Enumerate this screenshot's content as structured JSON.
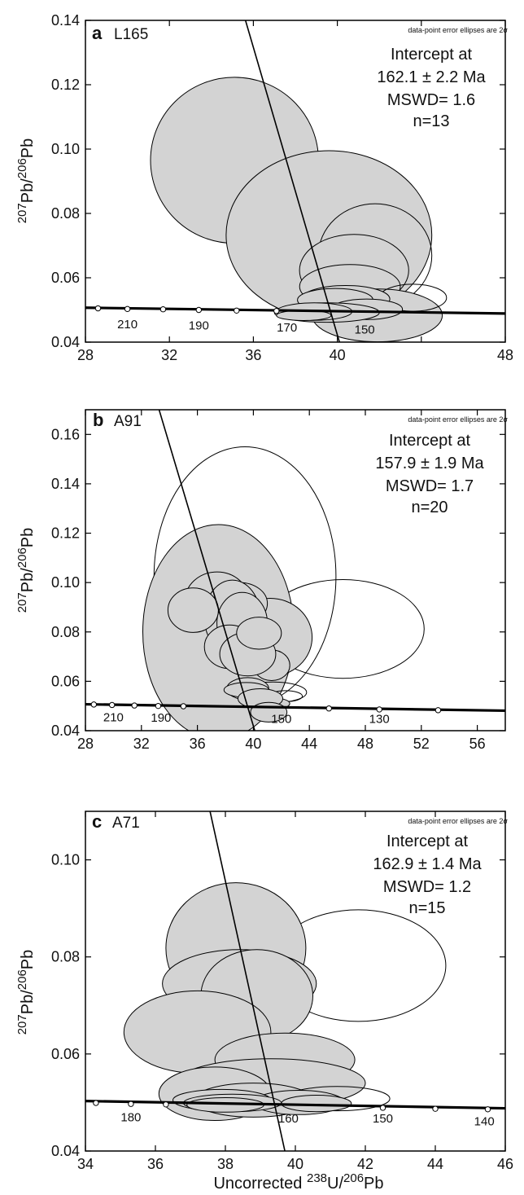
{
  "x_axis_label": {
    "prefix": "Uncorrected ",
    "sup1": "238",
    "mid": "U/",
    "sup2": "206",
    "suffix": "Pb"
  },
  "y_axis_label": {
    "sup1": "207",
    "mid": "Pb/",
    "sup2": "206",
    "suffix": "Pb"
  },
  "chart_data": [
    {
      "type": "scatter",
      "panel": "a",
      "sample": "L165",
      "note": "data-point error ellipses are 2σ",
      "intercept_lines": [
        "Intercept at",
        "162.1 ± 2.2 Ma",
        "MSWD= 1.6",
        "n=13"
      ],
      "xlim": [
        28,
        48
      ],
      "ylim": [
        0.04,
        0.14
      ],
      "x_ticks": [
        28,
        32,
        36,
        40,
        44,
        48
      ],
      "x_tick_labels": [
        "28",
        "32",
        "36",
        "40",
        "",
        "48"
      ],
      "y_ticks": [
        0.04,
        0.06,
        0.08,
        0.1,
        0.12,
        0.14
      ],
      "y_tick_labels": [
        "0.04",
        "0.06",
        "0.08",
        "0.10",
        "0.12",
        "0.14"
      ],
      "concordia": {
        "line": [
          [
            28,
            0.0507
          ],
          [
            48,
            0.0489
          ]
        ],
        "age_marks": [
          [
            28.6,
            0.0505
          ],
          [
            30.0,
            0.0503
          ],
          [
            31.7,
            0.0502
          ],
          [
            33.4,
            0.05
          ],
          [
            35.2,
            0.0498
          ],
          [
            37.1,
            0.0497
          ]
        ],
        "age_labels": [
          {
            "text": "210",
            "x": 30.0,
            "y": 0.0443
          },
          {
            "text": "190",
            "x": 33.4,
            "y": 0.0439
          },
          {
            "text": "170",
            "x": 37.6,
            "y": 0.0433
          },
          {
            "text": "150",
            "x": 41.3,
            "y": 0.0427
          }
        ]
      },
      "discordia": [
        [
          35.4,
          0.145
        ],
        [
          40.1,
          0.04
        ]
      ],
      "ellipses": [
        {
          "cx": 35.1,
          "cy": 0.0965,
          "rx": 4.0,
          "ry": 0.0258,
          "filled": true
        },
        {
          "cx": 39.6,
          "cy": 0.0733,
          "rx": 4.9,
          "ry": 0.0262,
          "filled": true
        },
        {
          "cx": 41.8,
          "cy": 0.0669,
          "rx": 2.7,
          "ry": 0.0161,
          "filled": false
        },
        {
          "cx": 40.8,
          "cy": 0.0623,
          "rx": 2.6,
          "ry": 0.0112,
          "filled": true
        },
        {
          "cx": 40.6,
          "cy": 0.0573,
          "rx": 2.4,
          "ry": 0.0068,
          "filled": true
        },
        {
          "cx": 41.9,
          "cy": 0.0483,
          "rx": 3.1,
          "ry": 0.0082,
          "filled": true
        },
        {
          "cx": 43.6,
          "cy": 0.0538,
          "rx": 1.6,
          "ry": 0.0042,
          "filled": false
        },
        {
          "cx": 40.4,
          "cy": 0.0534,
          "rx": 2.1,
          "ry": 0.0042,
          "filled": true
        },
        {
          "cx": 39.9,
          "cy": 0.0531,
          "rx": 1.8,
          "ry": 0.0036,
          "filled": true
        },
        {
          "cx": 41.4,
          "cy": 0.0502,
          "rx": 1.7,
          "ry": 0.0032,
          "filled": true
        },
        {
          "cx": 39.5,
          "cy": 0.0492,
          "rx": 2.5,
          "ry": 0.003,
          "filled": true
        },
        {
          "cx": 38.9,
          "cy": 0.0495,
          "rx": 1.8,
          "ry": 0.0027,
          "filled": true
        },
        {
          "cx": 38.4,
          "cy": 0.0483,
          "rx": 1.3,
          "ry": 0.0016,
          "filled": true
        }
      ]
    },
    {
      "type": "scatter",
      "panel": "b",
      "sample": "A91",
      "note": "data-point error ellipses are 2σ",
      "intercept_lines": [
        "Intercept at",
        "157.9 ± 1.9 Ma",
        "MSWD= 1.7",
        "n=20"
      ],
      "xlim": [
        28,
        58
      ],
      "ylim": [
        0.04,
        0.17
      ],
      "x_ticks": [
        28,
        32,
        36,
        40,
        44,
        48,
        52,
        56
      ],
      "x_tick_labels": [
        "28",
        "32",
        "36",
        "40",
        "44",
        "48",
        "52",
        "56"
      ],
      "y_ticks": [
        0.04,
        0.06,
        0.08,
        0.1,
        0.12,
        0.14,
        0.16
      ],
      "y_tick_labels": [
        "0.04",
        "0.06",
        "0.08",
        "0.10",
        "0.12",
        "0.14",
        "0.16"
      ],
      "concordia": {
        "line": [
          [
            28,
            0.0507
          ],
          [
            58,
            0.0481
          ]
        ],
        "age_marks": [
          [
            28.6,
            0.0506
          ],
          [
            29.9,
            0.0504
          ],
          [
            31.5,
            0.0502
          ],
          [
            33.2,
            0.05
          ],
          [
            35.0,
            0.0499
          ],
          [
            45.4,
            0.049
          ],
          [
            49.0,
            0.0486
          ],
          [
            53.2,
            0.0483
          ]
        ],
        "age_labels": [
          {
            "text": "210",
            "x": 30.0,
            "y": 0.0438
          },
          {
            "text": "190",
            "x": 33.4,
            "y": 0.0436
          },
          {
            "text": "150",
            "x": 42.0,
            "y": 0.0431
          },
          {
            "text": "130",
            "x": 49.0,
            "y": 0.0431
          }
        ]
      },
      "discordia": [
        [
          33.0,
          0.175
        ],
        [
          40.1,
          0.04
        ]
      ],
      "ellipses": [
        {
          "cx": 39.4,
          "cy": 0.1025,
          "rx": 6.5,
          "ry": 0.0525,
          "filled": false
        },
        {
          "cx": 46.4,
          "cy": 0.0812,
          "rx": 5.8,
          "ry": 0.02,
          "filled": false
        },
        {
          "cx": 37.5,
          "cy": 0.08,
          "rx": 5.4,
          "ry": 0.0435,
          "filled": true
        },
        {
          "cx": 41.2,
          "cy": 0.0778,
          "rx": 3.0,
          "ry": 0.0158,
          "filled": true
        },
        {
          "cx": 37.4,
          "cy": 0.0925,
          "rx": 2.3,
          "ry": 0.0118,
          "filled": true
        },
        {
          "cx": 39.0,
          "cy": 0.0915,
          "rx": 2.0,
          "ry": 0.0085,
          "filled": true
        },
        {
          "cx": 38.5,
          "cy": 0.086,
          "rx": 2.0,
          "ry": 0.015,
          "filled": true
        },
        {
          "cx": 39.2,
          "cy": 0.0835,
          "rx": 1.8,
          "ry": 0.0125,
          "filled": true
        },
        {
          "cx": 35.7,
          "cy": 0.0888,
          "rx": 1.8,
          "ry": 0.009,
          "filled": true
        },
        {
          "cx": 38.3,
          "cy": 0.074,
          "rx": 1.8,
          "ry": 0.0088,
          "filled": true
        },
        {
          "cx": 41.3,
          "cy": 0.0665,
          "rx": 1.3,
          "ry": 0.0062,
          "filled": true
        },
        {
          "cx": 39.6,
          "cy": 0.071,
          "rx": 2.0,
          "ry": 0.0088,
          "filled": true
        },
        {
          "cx": 40.4,
          "cy": 0.0795,
          "rx": 1.6,
          "ry": 0.0065,
          "filled": true
        },
        {
          "cx": 41.4,
          "cy": 0.0555,
          "rx": 2.4,
          "ry": 0.0042,
          "filled": false
        },
        {
          "cx": 42.3,
          "cy": 0.054,
          "rx": 1.2,
          "ry": 0.0022,
          "filled": false
        },
        {
          "cx": 39.6,
          "cy": 0.057,
          "rx": 1.5,
          "ry": 0.0045,
          "filled": true
        },
        {
          "cx": 39.5,
          "cy": 0.0565,
          "rx": 1.6,
          "ry": 0.003,
          "filled": true
        },
        {
          "cx": 41.1,
          "cy": 0.051,
          "rx": 1.5,
          "ry": 0.0025,
          "filled": true
        },
        {
          "cx": 40.5,
          "cy": 0.053,
          "rx": 1.6,
          "ry": 0.004,
          "filled": true
        },
        {
          "cx": 41.1,
          "cy": 0.0475,
          "rx": 1.3,
          "ry": 0.004,
          "filled": true
        }
      ]
    },
    {
      "type": "scatter",
      "panel": "c",
      "sample": "A71",
      "note": "data-point error ellipses are 2σ",
      "intercept_lines": [
        "Intercept at",
        "162.9 ± 1.4 Ma",
        "MSWD= 1.2",
        "n=15"
      ],
      "xlim": [
        34,
        46
      ],
      "ylim": [
        0.04,
        0.11
      ],
      "x_ticks": [
        34,
        36,
        38,
        40,
        42,
        44,
        46
      ],
      "x_tick_labels": [
        "34",
        "36",
        "38",
        "40",
        "42",
        "44",
        "46"
      ],
      "y_ticks": [
        0.04,
        0.06,
        0.08,
        0.1
      ],
      "y_tick_labels": [
        "0.04",
        "0.06",
        "0.08",
        "0.10"
      ],
      "concordia": {
        "line": [
          [
            34,
            0.0503
          ],
          [
            46,
            0.0488
          ]
        ],
        "age_marks": [
          [
            34.3,
            0.0499
          ],
          [
            35.3,
            0.0497
          ],
          [
            36.3,
            0.0496
          ],
          [
            42.5,
            0.0489
          ],
          [
            44.0,
            0.0487
          ],
          [
            45.5,
            0.0486
          ]
        ],
        "age_labels": [
          {
            "text": "180",
            "x": 35.3,
            "y": 0.0461
          },
          {
            "text": "160",
            "x": 39.8,
            "y": 0.0459
          },
          {
            "text": "150",
            "x": 42.5,
            "y": 0.0459
          },
          {
            "text": "140",
            "x": 45.4,
            "y": 0.0453
          }
        ]
      },
      "discordia": [
        [
          37.5,
          0.112
        ],
        [
          39.7,
          0.04
        ]
      ],
      "ellipses": [
        {
          "cx": 41.8,
          "cy": 0.0782,
          "rx": 2.5,
          "ry": 0.0115,
          "filled": false
        },
        {
          "cx": 38.3,
          "cy": 0.0818,
          "rx": 2.0,
          "ry": 0.0135,
          "filled": true
        },
        {
          "cx": 38.4,
          "cy": 0.0745,
          "rx": 2.2,
          "ry": 0.007,
          "filled": true
        },
        {
          "cx": 38.9,
          "cy": 0.072,
          "rx": 1.6,
          "ry": 0.0095,
          "filled": true
        },
        {
          "cx": 37.2,
          "cy": 0.0645,
          "rx": 2.1,
          "ry": 0.0085,
          "filled": true
        },
        {
          "cx": 39.7,
          "cy": 0.0588,
          "rx": 2.0,
          "ry": 0.0055,
          "filled": true
        },
        {
          "cx": 39.3,
          "cy": 0.054,
          "rx": 2.7,
          "ry": 0.005,
          "filled": true
        },
        {
          "cx": 37.7,
          "cy": 0.0518,
          "rx": 1.6,
          "ry": 0.0055,
          "filled": true
        },
        {
          "cx": 38.8,
          "cy": 0.0505,
          "rx": 1.7,
          "ry": 0.0035,
          "filled": true
        },
        {
          "cx": 41.2,
          "cy": 0.0508,
          "rx": 1.5,
          "ry": 0.0025,
          "filled": false
        },
        {
          "cx": 40.1,
          "cy": 0.05,
          "rx": 1.3,
          "ry": 0.0025,
          "filled": true
        },
        {
          "cx": 37.9,
          "cy": 0.0505,
          "rx": 1.4,
          "ry": 0.0022,
          "filled": true
        },
        {
          "cx": 38.2,
          "cy": 0.0499,
          "rx": 1.4,
          "ry": 0.0018,
          "filled": true
        },
        {
          "cx": 40.6,
          "cy": 0.0498,
          "rx": 1.0,
          "ry": 0.0017,
          "filled": true
        },
        {
          "cx": 38.0,
          "cy": 0.0495,
          "rx": 1.1,
          "ry": 0.0015,
          "filled": true
        }
      ]
    }
  ]
}
